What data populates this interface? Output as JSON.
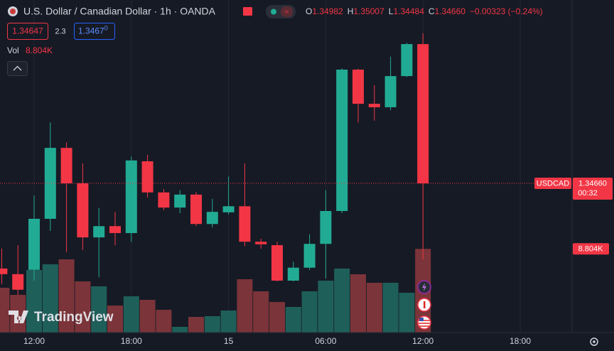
{
  "chart_data": {
    "type": "candlestick",
    "title": "U.S. Dollar / Canadian Dollar · 1h · OANDA",
    "symbol": "USDCAD",
    "categories": [
      null,
      null,
      "12:00",
      null,
      null,
      null,
      null,
      null,
      "18:00",
      null,
      null,
      null,
      null,
      null,
      "15",
      null,
      null,
      null,
      null,
      null,
      "06:00",
      null,
      null,
      null,
      null,
      null,
      "12:00",
      null,
      null,
      null,
      null,
      null,
      "18:00",
      null,
      null,
      null
    ],
    "open": [
      1.34463,
      1.3445,
      1.3446,
      1.34578,
      1.34742,
      1.3466,
      1.34535,
      1.34561,
      1.34545,
      1.34711,
      1.34639,
      1.34604,
      1.34634,
      1.34566,
      1.34593,
      1.34607,
      1.34525,
      1.34517,
      1.34435,
      1.34465,
      1.3452,
      1.34596,
      1.34923,
      1.34844,
      1.34836,
      1.34908,
      1.34982,
      null,
      null,
      null,
      null,
      null,
      null,
      null,
      null,
      null
    ],
    "high": [
      1.34509,
      1.34517,
      1.34632,
      1.34801,
      1.34755,
      1.34706,
      1.34603,
      1.34594,
      1.34722,
      1.34726,
      1.34647,
      1.34644,
      1.3464,
      1.34624,
      1.34676,
      1.34706,
      1.34532,
      1.34525,
      1.34479,
      1.34542,
      1.34644,
      1.34926,
      1.34925,
      1.34887,
      1.34953,
      1.34985,
      1.35007,
      null,
      null,
      null,
      null,
      null,
      null,
      null,
      null,
      null
    ],
    "low": [
      1.34427,
      1.34402,
      1.34435,
      1.3455,
      1.34501,
      1.34506,
      1.34443,
      1.34517,
      1.34525,
      1.34627,
      1.34598,
      1.34591,
      1.34561,
      1.34558,
      1.34588,
      1.34515,
      1.34509,
      1.34433,
      1.34433,
      1.3446,
      1.3444,
      1.34591,
      1.34801,
      1.34805,
      1.34829,
      1.34906,
      1.34484,
      null,
      null,
      null,
      null,
      null,
      null,
      null,
      null,
      null
    ],
    "close": [
      1.3445,
      1.34414,
      1.34578,
      1.34742,
      1.3466,
      1.34535,
      1.34561,
      1.34545,
      1.34713,
      1.34639,
      1.34604,
      1.34634,
      1.34566,
      1.34594,
      1.34607,
      1.34525,
      1.34519,
      1.34435,
      1.34465,
      1.3452,
      1.34596,
      1.34923,
      1.34844,
      1.34836,
      1.34908,
      1.34982,
      1.3466,
      null,
      null,
      null,
      null,
      null,
      null,
      null,
      null,
      null
    ],
    "volume": [
      4712,
      3964,
      6582,
      7180,
      7703,
      5385,
      4862,
      2842,
      3814,
      3440,
      2393,
      598,
      1645,
      1720,
      2318,
      5609,
      4338,
      3216,
      2692,
      4338,
      5460,
      6731,
      6133,
      5235,
      5235,
      4188,
      8804,
      null,
      null,
      null,
      null,
      null,
      null,
      null,
      null,
      null
    ],
    "ylim": [
      1.34315,
      1.35084
    ],
    "volume_ylim": [
      0,
      35000
    ],
    "up_color": "#22ab94",
    "down_color": "#f23645",
    "up_volume_color": "#1f5f5a",
    "down_volume_color": "#7b3439",
    "grid": true,
    "legend": {
      "o_label": "O",
      "o": "1.34982",
      "h_label": "H",
      "h": "1.35007",
      "l_label": "L",
      "l": "1.34484",
      "c_label": "C",
      "c": "1.34660",
      "change": "−0.00323 (−0.24%)"
    },
    "bid": "1.34647",
    "spread": "2.3",
    "ask": "1.3467",
    "ask_sup": "0",
    "volume_label": "Vol",
    "volume_value_label": "8.804K",
    "last_price": {
      "value": 1.3466,
      "label": "1.34660"
    },
    "countdown": "00:32",
    "watermark": "TradingView"
  }
}
